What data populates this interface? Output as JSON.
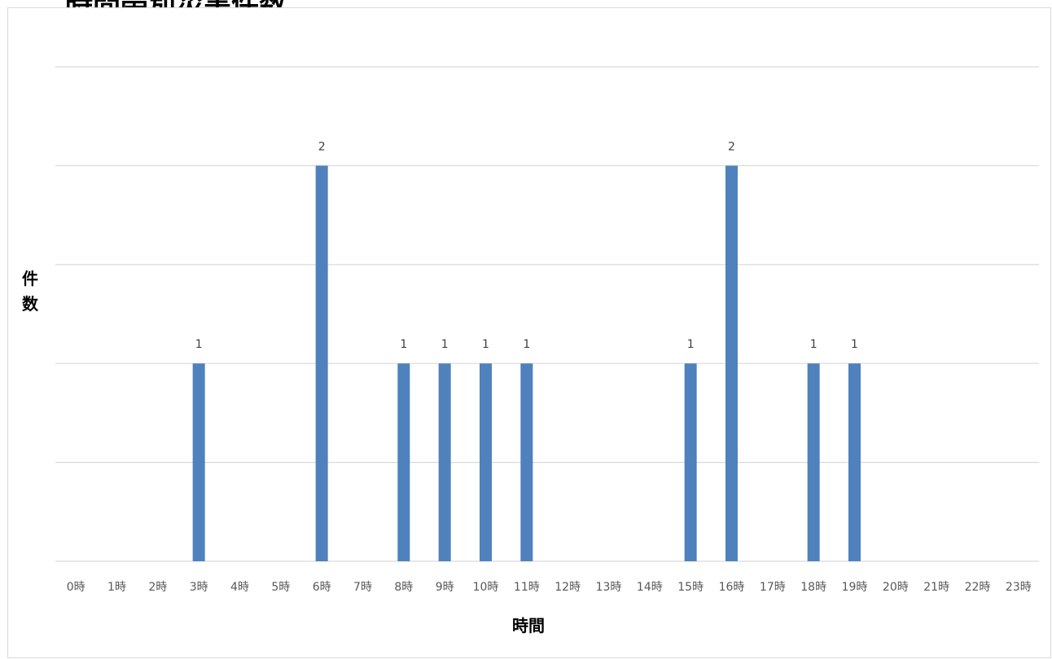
{
  "page_title_fragment": "時間帯別災害件数",
  "chart_data": {
    "type": "bar",
    "title": "",
    "xlabel": "時間",
    "ylabel": "件数",
    "categories": [
      "0時",
      "1時",
      "2時",
      "3時",
      "4時",
      "5時",
      "6時",
      "7時",
      "8時",
      "9時",
      "10時",
      "11時",
      "12時",
      "13時",
      "14時",
      "15時",
      "16時",
      "17時",
      "18時",
      "19時",
      "20時",
      "21時",
      "22時",
      "23時"
    ],
    "values": [
      0,
      0,
      0,
      1,
      0,
      0,
      2,
      0,
      1,
      1,
      1,
      1,
      0,
      0,
      0,
      1,
      2,
      0,
      1,
      1,
      0,
      0,
      0,
      0
    ],
    "ylim": [
      0,
      2.5
    ],
    "grid": true,
    "bar_color": "#4f81bd",
    "grid_color": "#d9d9d9"
  }
}
